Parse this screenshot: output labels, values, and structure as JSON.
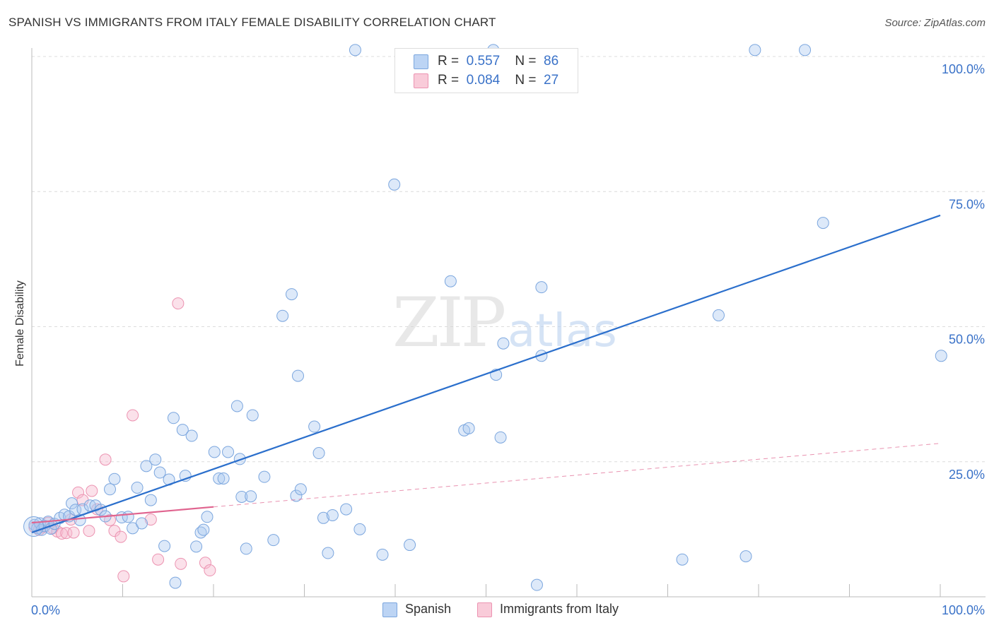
{
  "header": {
    "title": "SPANISH VS IMMIGRANTS FROM ITALY FEMALE DISABILITY CORRELATION CHART",
    "source": "Source: ZipAtlas.com"
  },
  "watermark": {
    "zip": "ZIP",
    "atlas": "atlas"
  },
  "legend": {
    "rows": [
      {
        "r_label": "R =",
        "r_value": "0.557",
        "n_label": "N =",
        "n_value": "86"
      },
      {
        "r_label": "R =",
        "r_value": "0.084",
        "n_label": "N =",
        "n_value": "27"
      }
    ],
    "bottom": [
      "Spanish",
      "Immigrants from Italy"
    ]
  },
  "colors": {
    "spanish_fill": "#a9c8f0",
    "spanish_stroke": "#7ba6de",
    "spanish_line": "#2b6fcc",
    "italy_fill": "#f7bdd0",
    "italy_stroke": "#ec93b1",
    "italy_line": "#e0648f",
    "axis_label": "#3a72c8",
    "grid": "#dcdcdc"
  },
  "chart_data": {
    "type": "scatter",
    "title": "SPANISH VS IMMIGRANTS FROM ITALY FEMALE DISABILITY CORRELATION CHART",
    "xlabel": "",
    "ylabel": "Female Disability",
    "xlim": [
      0,
      100
    ],
    "ylim": [
      0,
      100
    ],
    "x_tick_labels": [
      "0.0%",
      "100.0%"
    ],
    "y_tick_labels": [
      "25.0%",
      "50.0%",
      "75.0%",
      "100.0%"
    ],
    "y_ticks": [
      25,
      50,
      75,
      100
    ],
    "series": [
      {
        "name": "Spanish",
        "r": 0.557,
        "n": 86,
        "trend": {
          "x": [
            0,
            100
          ],
          "y": [
            11.9,
            70.6
          ]
        },
        "points": [
          [
            0.3,
            13.3
          ],
          [
            0.6,
            12.7
          ],
          [
            0.9,
            13.6
          ],
          [
            1.1,
            12.4
          ],
          [
            1.4,
            13.1
          ],
          [
            1.8,
            13.9
          ],
          [
            2.1,
            12.6
          ],
          [
            2.5,
            13.5
          ],
          [
            3.1,
            14.6
          ],
          [
            3.6,
            15.2
          ],
          [
            4.1,
            14.9
          ],
          [
            4.4,
            17.3
          ],
          [
            4.8,
            16.1
          ],
          [
            5.3,
            14.2
          ],
          [
            5.6,
            16.2
          ],
          [
            6.4,
            16.9
          ],
          [
            7.0,
            16.9
          ],
          [
            7.6,
            16.1
          ],
          [
            8.1,
            14.9
          ],
          [
            8.6,
            19.9
          ],
          [
            9.1,
            21.8
          ],
          [
            9.9,
            14.7
          ],
          [
            10.6,
            14.8
          ],
          [
            11.1,
            12.7
          ],
          [
            11.6,
            20.2
          ],
          [
            12.1,
            13.6
          ],
          [
            12.6,
            24.2
          ],
          [
            13.1,
            17.9
          ],
          [
            13.6,
            25.4
          ],
          [
            14.1,
            23.0
          ],
          [
            14.6,
            9.4
          ],
          [
            15.1,
            21.7
          ],
          [
            15.8,
            2.6
          ],
          [
            15.6,
            33.1
          ],
          [
            16.6,
            30.9
          ],
          [
            16.9,
            22.4
          ],
          [
            17.6,
            29.8
          ],
          [
            18.1,
            9.3
          ],
          [
            18.6,
            11.9
          ],
          [
            18.9,
            12.4
          ],
          [
            19.3,
            14.8
          ],
          [
            20.1,
            26.8
          ],
          [
            20.6,
            21.9
          ],
          [
            21.1,
            21.9
          ],
          [
            21.6,
            26.8
          ],
          [
            22.6,
            35.3
          ],
          [
            22.9,
            25.5
          ],
          [
            23.1,
            18.5
          ],
          [
            23.6,
            8.9
          ],
          [
            24.1,
            18.6
          ],
          [
            24.3,
            33.6
          ],
          [
            25.6,
            22.2
          ],
          [
            26.6,
            10.5
          ],
          [
            27.6,
            52.0
          ],
          [
            28.6,
            56.0
          ],
          [
            29.1,
            18.7
          ],
          [
            29.6,
            19.9
          ],
          [
            29.3,
            40.9
          ],
          [
            31.1,
            31.5
          ],
          [
            31.6,
            26.6
          ],
          [
            32.1,
            14.6
          ],
          [
            32.6,
            8.1
          ],
          [
            33.1,
            15.1
          ],
          [
            34.6,
            16.2
          ],
          [
            36.1,
            12.5
          ],
          [
            35.6,
            101.2
          ],
          [
            38.6,
            7.8
          ],
          [
            39.9,
            76.3
          ],
          [
            41.6,
            9.6
          ],
          [
            46.1,
            58.4
          ],
          [
            47.6,
            30.8
          ],
          [
            48.1,
            31.2
          ],
          [
            51.1,
            41.1
          ],
          [
            51.6,
            29.5
          ],
          [
            51.9,
            46.9
          ],
          [
            55.6,
            2.2
          ],
          [
            56.1,
            44.6
          ],
          [
            56.1,
            57.3
          ],
          [
            71.6,
            6.9
          ],
          [
            75.6,
            52.1
          ],
          [
            78.6,
            7.5
          ],
          [
            79.6,
            101.2
          ],
          [
            85.1,
            101.2
          ],
          [
            87.1,
            69.2
          ],
          [
            100.1,
            44.6
          ],
          [
            50.8,
            101.2
          ]
        ]
      },
      {
        "name": "Immigrants from Italy",
        "r": 0.084,
        "n": 27,
        "trend": {
          "x": [
            0,
            100
          ],
          "y": [
            13.7,
            28.4
          ]
        },
        "trend_solid_until_x": 20,
        "points": [
          [
            0.3,
            12.9
          ],
          [
            0.8,
            12.4
          ],
          [
            1.3,
            12.9
          ],
          [
            1.8,
            13.7
          ],
          [
            2.3,
            12.7
          ],
          [
            2.8,
            12.1
          ],
          [
            3.3,
            11.7
          ],
          [
            3.8,
            11.8
          ],
          [
            4.3,
            14.3
          ],
          [
            4.6,
            11.9
          ],
          [
            5.1,
            19.3
          ],
          [
            5.6,
            17.9
          ],
          [
            6.3,
            12.2
          ],
          [
            6.6,
            19.6
          ],
          [
            7.2,
            16.2
          ],
          [
            8.1,
            25.4
          ],
          [
            8.6,
            14.2
          ],
          [
            9.1,
            12.2
          ],
          [
            9.8,
            11.1
          ],
          [
            10.1,
            3.8
          ],
          [
            11.1,
            33.6
          ],
          [
            13.1,
            14.3
          ],
          [
            13.9,
            6.9
          ],
          [
            16.4,
            6.1
          ],
          [
            16.1,
            54.3
          ],
          [
            19.1,
            6.3
          ],
          [
            19.6,
            4.9
          ]
        ]
      }
    ]
  }
}
